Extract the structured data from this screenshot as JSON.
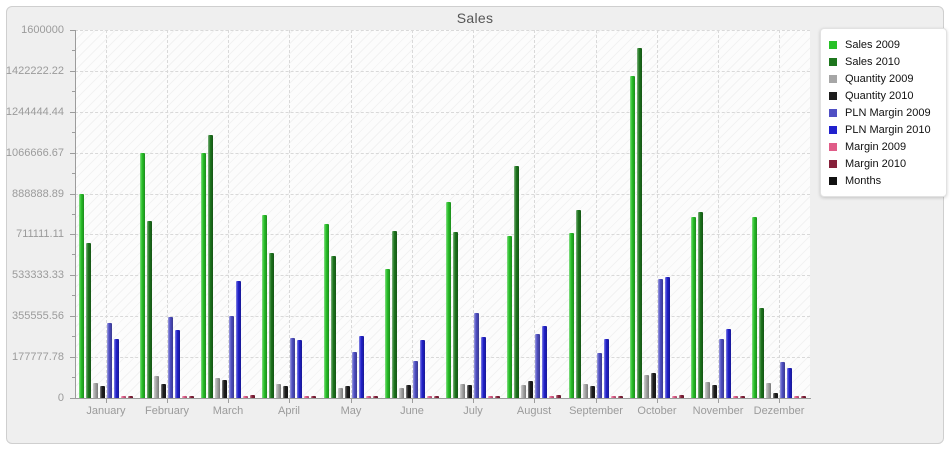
{
  "title": "Sales",
  "chart_data": {
    "type": "bar",
    "title": "Sales",
    "categories": [
      "January",
      "February",
      "March",
      "April",
      "May",
      "June",
      "July",
      "August",
      "September",
      "October",
      "November",
      "Dezember"
    ],
    "y_ticks": [
      "1600000",
      "1422222.22",
      "1244444.44",
      "1066666.67",
      "888888.89",
      "711111.11",
      "533333.33",
      "355555.56",
      "177777.78",
      "0"
    ],
    "ylim": [
      0,
      1600000
    ],
    "grid": "dashed",
    "legend_position": "right",
    "series": [
      {
        "name": "Sales 2009",
        "color": "#27c127",
        "values": [
          885000,
          1065000,
          1066000,
          795000,
          755000,
          560000,
          851000,
          703000,
          717000,
          1400000,
          788000,
          785000
        ]
      },
      {
        "name": "Sales 2010",
        "color": "#1d761d",
        "values": [
          675000,
          770000,
          1145000,
          630000,
          616000,
          728000,
          720000,
          1007000,
          819000,
          1521000,
          807000,
          390000
        ]
      },
      {
        "name": "Quantity 2009",
        "color": "#a6a6a6",
        "values": [
          65000,
          95000,
          87000,
          60000,
          44000,
          44000,
          62000,
          55000,
          62000,
          99000,
          70000,
          65000
        ]
      },
      {
        "name": "Quantity 2010",
        "color": "#1d1d1d",
        "values": [
          50000,
          60000,
          78000,
          50000,
          54000,
          58000,
          55000,
          76000,
          54000,
          110000,
          58000,
          22000
        ]
      },
      {
        "name": "PLN Margin 2009",
        "color": "#4f4fc4",
        "values": [
          324000,
          353000,
          356000,
          259000,
          199000,
          163000,
          371000,
          279000,
          196000,
          516000,
          255000,
          156000
        ]
      },
      {
        "name": "PLN Margin 2010",
        "color": "#2121cd",
        "values": [
          257000,
          297000,
          508000,
          252000,
          268000,
          252000,
          265000,
          313000,
          258000,
          528000,
          298000,
          131000
        ]
      },
      {
        "name": "Margin 2009",
        "color": "#e05c88",
        "values": [
          8000,
          9000,
          9000,
          8000,
          8000,
          8000,
          9000,
          9000,
          8000,
          10000,
          9000,
          8000
        ]
      },
      {
        "name": "Margin 2010",
        "color": "#86203a",
        "values": [
          10000,
          10000,
          11000,
          10000,
          9000,
          10000,
          10000,
          11000,
          10000,
          12000,
          10000,
          9000
        ]
      },
      {
        "name": "Months",
        "color": "#111111",
        "values": []
      }
    ]
  },
  "colors": {
    "panel_bg": "#efefef",
    "panel_border": "#cfcfcf",
    "grid": "#d9d9d9",
    "axis": "#9c9c9c",
    "tick_text": "#9b9b9b",
    "title_text": "#555555"
  }
}
